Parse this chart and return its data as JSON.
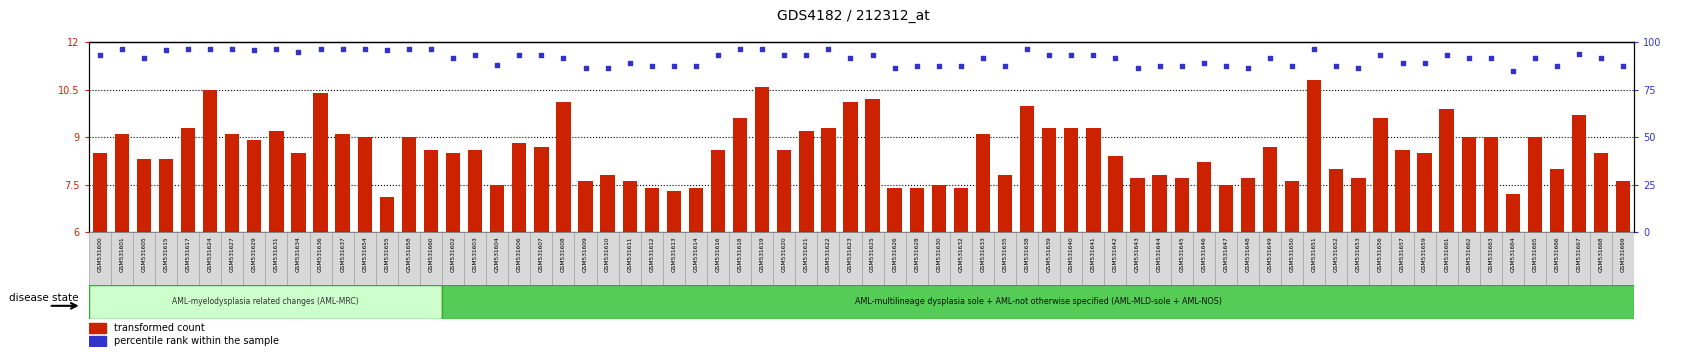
{
  "title": "GDS4182 / 212312_at",
  "bar_color": "#cc2200",
  "dot_color": "#3333cc",
  "ylim_left": [
    6,
    12
  ],
  "ylim_right": [
    0,
    100
  ],
  "yticks_left": [
    6,
    7.5,
    9,
    10.5,
    12
  ],
  "yticks_right": [
    0,
    25,
    50,
    75,
    100
  ],
  "samples": [
    "GSM531600",
    "GSM531601",
    "GSM531605",
    "GSM531615",
    "GSM531617",
    "GSM531624",
    "GSM531627",
    "GSM531629",
    "GSM531631",
    "GSM531634",
    "GSM531636",
    "GSM531637",
    "GSM531654",
    "GSM531655",
    "GSM531658",
    "GSM531660",
    "GSM531602",
    "GSM531603",
    "GSM531604",
    "GSM531606",
    "GSM531607",
    "GSM531608",
    "GSM531609",
    "GSM531610",
    "GSM531611",
    "GSM531612",
    "GSM531613",
    "GSM531614",
    "GSM531616",
    "GSM531618",
    "GSM531619",
    "GSM531620",
    "GSM531621",
    "GSM531622",
    "GSM531623",
    "GSM531625",
    "GSM531626",
    "GSM531628",
    "GSM531630",
    "GSM531632",
    "GSM531633",
    "GSM531635",
    "GSM531638",
    "GSM531639",
    "GSM531640",
    "GSM531641",
    "GSM531642",
    "GSM531643",
    "GSM531644",
    "GSM531645",
    "GSM531646",
    "GSM531647",
    "GSM531648",
    "GSM531649",
    "GSM531650",
    "GSM531651",
    "GSM531652",
    "GSM531653",
    "GSM531656",
    "GSM531657",
    "GSM531659",
    "GSM531661",
    "GSM531662",
    "GSM531663",
    "GSM531664",
    "GSM531665",
    "GSM531666",
    "GSM531667",
    "GSM531668",
    "GSM531669"
  ],
  "bar_values": [
    8.5,
    9.1,
    8.3,
    8.3,
    9.3,
    10.5,
    9.1,
    8.9,
    9.2,
    8.5,
    10.4,
    9.1,
    9.0,
    7.1,
    9.0,
    8.6,
    8.5,
    8.6,
    7.5,
    8.8,
    8.7,
    10.1,
    7.6,
    7.8,
    7.6,
    7.4,
    7.3,
    7.4,
    8.6,
    9.6,
    10.6,
    8.6,
    9.2,
    9.3,
    10.1,
    10.2,
    7.4,
    7.4,
    7.5,
    7.4,
    9.1,
    7.8,
    10.0,
    9.3,
    9.3,
    9.3,
    8.4,
    7.7,
    7.8,
    7.7,
    8.2,
    7.5,
    7.7,
    8.7,
    7.6,
    10.8,
    8.0,
    7.7,
    9.6,
    8.6,
    8.5,
    9.9,
    9.0,
    9.0,
    7.2,
    9.0,
    8.0,
    9.7,
    8.5,
    7.6
  ],
  "dot_values": [
    11.6,
    11.8,
    11.5,
    11.75,
    11.8,
    11.78,
    11.78,
    11.75,
    11.78,
    11.7,
    11.8,
    11.78,
    11.78,
    11.75,
    11.78,
    11.78,
    11.5,
    11.6,
    11.3,
    11.6,
    11.6,
    11.5,
    11.2,
    11.2,
    11.35,
    11.25,
    11.25,
    11.25,
    11.6,
    11.78,
    11.78,
    11.6,
    11.6,
    11.78,
    11.5,
    11.6,
    11.2,
    11.25,
    11.25,
    11.25,
    11.5,
    11.25,
    11.78,
    11.6,
    11.6,
    11.6,
    11.5,
    11.2,
    11.25,
    11.25,
    11.35,
    11.25,
    11.2,
    11.5,
    11.25,
    11.78,
    11.25,
    11.2,
    11.6,
    11.35,
    11.35,
    11.6,
    11.5,
    11.5,
    11.1,
    11.5,
    11.25,
    11.65,
    11.5,
    11.25
  ],
  "group1_count": 16,
  "group1_label": "AML-myelodysplasia related changes (AML-MRC)",
  "group1_color": "#ccffcc",
  "group2_label": "AML-multilineage dysplasia sole + AML-not otherwise specified (AML-MLD-sole + AML-NOS)",
  "group2_color": "#55cc55",
  "disease_label": "disease state",
  "legend1": "transformed count",
  "legend2": "percentile rank within the sample",
  "background_color": "#ffffff",
  "xtick_box_color": "#d8d8d8",
  "xtick_box_edge": "#999999"
}
